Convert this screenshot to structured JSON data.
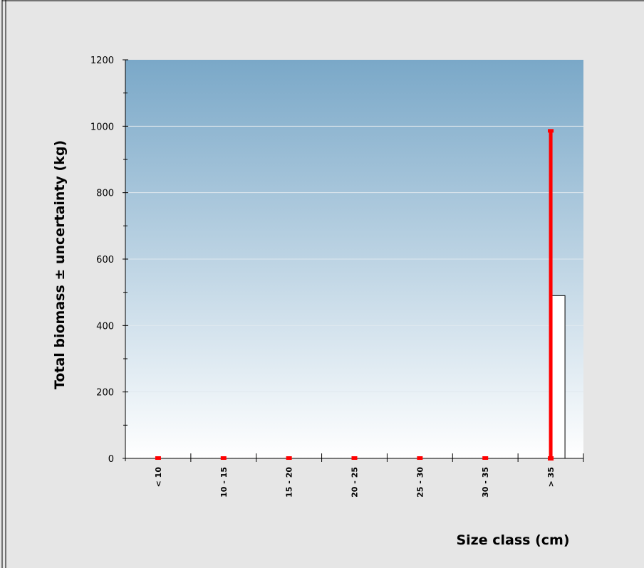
{
  "chart_data": {
    "type": "bar",
    "categories": [
      "< 10",
      "10 - 15",
      "15 - 20",
      "20 - 25",
      "25 - 30",
      "30 - 35",
      "> 35"
    ],
    "values": [
      0,
      0,
      0,
      0,
      0,
      0,
      490
    ],
    "error_low": [
      0,
      0,
      0,
      0,
      0,
      0,
      0
    ],
    "error_high": [
      0,
      0,
      0,
      0,
      0,
      0,
      985
    ],
    "xlabel": "Size class (cm)",
    "ylabel": "Total biomass ± uncertainty (kg)",
    "ylim": [
      0,
      1200
    ],
    "yticks": [
      0,
      200,
      400,
      600,
      800,
      1000,
      1200
    ],
    "grid": true,
    "colors": {
      "plot_top": "#7aa8c8",
      "plot_bottom": "#ffffff",
      "error_bar": "#ff0000",
      "bar_fill": "#ffffff",
      "bar_stroke": "#000000",
      "gridline": "#e0e8ee",
      "page_bg": "#e6e6e6"
    }
  }
}
